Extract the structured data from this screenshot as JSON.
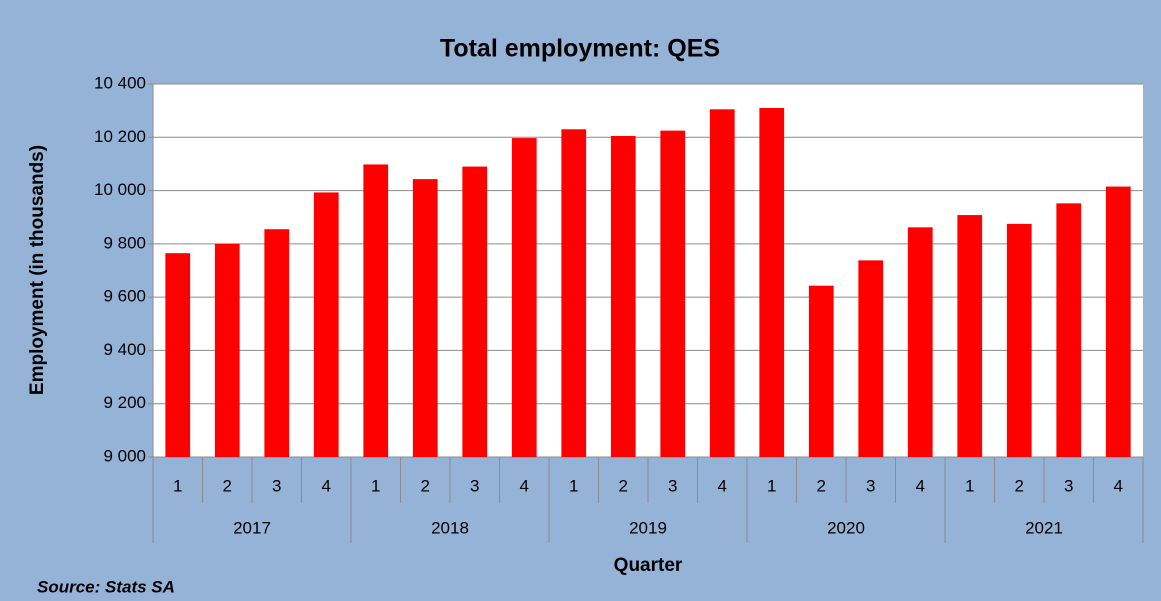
{
  "chart_data": {
    "type": "bar",
    "title": "Total employment: QES",
    "y_label": "Employment (in thousands)",
    "x_label": "Quarter",
    "source": "Source: Stats SA",
    "categories": [
      "1",
      "2",
      "3",
      "4",
      "1",
      "2",
      "3",
      "4",
      "1",
      "2",
      "3",
      "4",
      "1",
      "2",
      "3",
      "4",
      "1",
      "2",
      "3",
      "4"
    ],
    "groups": [
      "2017",
      "2018",
      "2019",
      "2020",
      "2021"
    ],
    "values": [
      9765,
      9800,
      9855,
      9993,
      10098,
      10043,
      10090,
      10197,
      10230,
      10205,
      10225,
      10305,
      10310,
      9643,
      9738,
      9862,
      9908,
      9875,
      9952,
      10015
    ],
    "color": "#ff0000",
    "ylim": [
      9000,
      10400
    ],
    "yticks": [
      {
        "value": 9000,
        "label": "9 000"
      },
      {
        "value": 9200,
        "label": "9 200"
      },
      {
        "value": 9400,
        "label": "9 400"
      },
      {
        "value": 9600,
        "label": "9 600"
      },
      {
        "value": 9800,
        "label": "9 800"
      },
      {
        "value": 10000,
        "label": "10 000"
      },
      {
        "value": 10200,
        "label": "10 200"
      },
      {
        "value": 10400,
        "label": "10 400"
      }
    ],
    "grid": true
  }
}
